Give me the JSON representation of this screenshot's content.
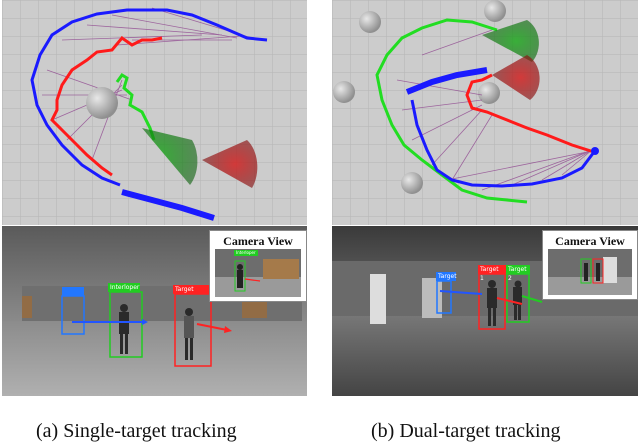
{
  "panels": [
    {
      "caption": "(a) Single-target tracking",
      "camera_label": "Camera View",
      "tags": [
        {
          "label": "Target"
        },
        {
          "label": "Interloper"
        },
        {
          "label": ""
        }
      ],
      "inset_tags": [
        {
          "label": "Interloper"
        }
      ]
    },
    {
      "caption": "(b) Dual-target tracking",
      "camera_label": "Camera View",
      "tags": [
        {
          "label": "Target 1"
        },
        {
          "label": "Target 2"
        },
        {
          "label": "Target"
        }
      ],
      "inset_tags": []
    }
  ],
  "colors": {
    "path_blue": "#1a1aff",
    "path_red": "#ff1a1a",
    "path_green": "#22dd22",
    "rays": "#8a3a8a",
    "grid_bg": "#c9c9c9",
    "camera_floor": "#6a6a6a",
    "tag_red": "#ff2222",
    "tag_blue": "#2277ff",
    "tag_green": "#22cc22"
  }
}
